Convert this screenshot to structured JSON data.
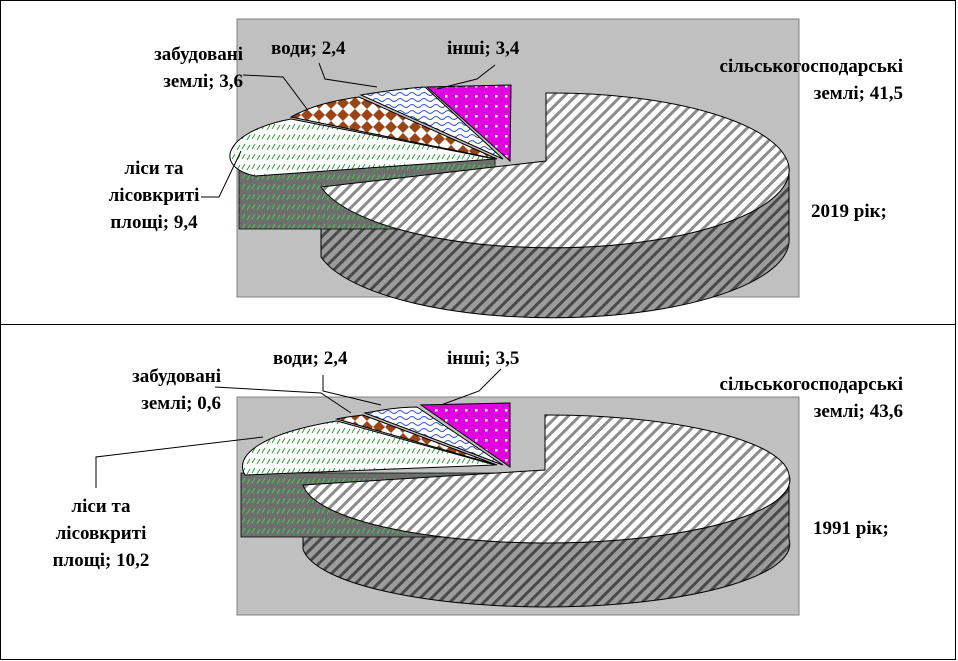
{
  "chart_data": [
    {
      "type": "pie",
      "title": "2019 рік;",
      "series": [
        {
          "category": "сільськогосподарські землі",
          "value": 41.5,
          "label_line1": "сільськогосподарські",
          "label_line2": "землі; 41,5",
          "pattern": "diag-gray",
          "color": "#8a8a8a"
        },
        {
          "category": "ліси та лісовкриті площі",
          "value": 9.4,
          "label_line1": "ліси та",
          "label_line2": "лісовкриті",
          "label_line3": "площі; 9,4",
          "pattern": "dash-green",
          "color": "#2e9b3a"
        },
        {
          "category": "забудовані землі",
          "value": 3.6,
          "label_line1": "забудовані",
          "label_line2": "землі; 3,6",
          "pattern": "diamond-brown",
          "color": "#8b3a10"
        },
        {
          "category": "води",
          "value": 2.4,
          "label_line1": "води; 2,4",
          "pattern": "wave-blue",
          "color": "#3355cc"
        },
        {
          "category": "інші",
          "value": 3.4,
          "label_line1": "інші; 3,4",
          "pattern": "dots-magenta",
          "color": "#e000e0"
        }
      ]
    },
    {
      "type": "pie",
      "title": "1991 рік;",
      "series": [
        {
          "category": "сільськогосподарські землі",
          "value": 43.6,
          "label_line1": "сільськогосподарські",
          "label_line2": "землі; 43,6",
          "pattern": "diag-gray",
          "color": "#8a8a8a"
        },
        {
          "category": "ліси та лісовкриті площі",
          "value": 10.2,
          "label_line1": "ліси та",
          "label_line2": "лісовкриті",
          "label_line3": "площі; 10,2",
          "pattern": "dash-green",
          "color": "#2e9b3a"
        },
        {
          "category": "забудовані землі",
          "value": 0.6,
          "label_line1": "забудовані",
          "label_line2": "землі; 0,6",
          "pattern": "diamond-brown",
          "color": "#8b3a10"
        },
        {
          "category": "води",
          "value": 2.4,
          "label_line1": "води; 2,4",
          "pattern": "wave-blue",
          "color": "#3355cc"
        },
        {
          "category": "інші",
          "value": 3.5,
          "label_line1": "інші; 3,5",
          "pattern": "dots-magenta",
          "color": "#e000e0"
        }
      ]
    }
  ],
  "chart_style": {
    "plot_background": "#c0c0c0",
    "pie": "3d exploded",
    "legend": "none"
  }
}
